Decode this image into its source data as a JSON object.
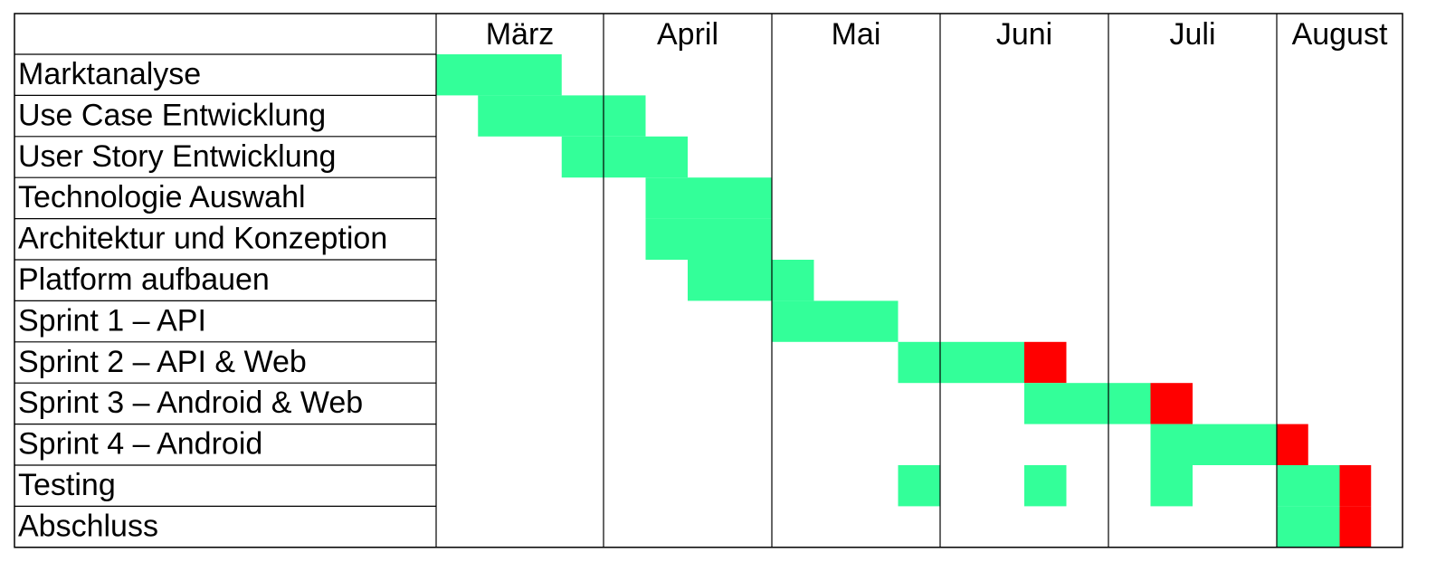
{
  "chart_data": {
    "type": "gantt",
    "months": [
      "März",
      "April",
      "Mai",
      "Juni",
      "Juli",
      "August"
    ],
    "slots_per_month": [
      4,
      4,
      4,
      4,
      4,
      3
    ],
    "colors": {
      "done": "#33ff99",
      "buffer": "#ff0000",
      "grid": "#000000"
    },
    "tasks": [
      {
        "name": "Marktanalyse",
        "segments": [
          {
            "start_month": 0,
            "start_slot": 0,
            "slots": 3,
            "status": "done"
          }
        ]
      },
      {
        "name": "Use Case Entwicklung",
        "segments": [
          {
            "start_month": 0,
            "start_slot": 1,
            "slots": 4,
            "status": "done"
          }
        ]
      },
      {
        "name": "User Story Entwicklung",
        "segments": [
          {
            "start_month": 0,
            "start_slot": 3,
            "slots": 3,
            "status": "done"
          }
        ]
      },
      {
        "name": "Technologie Auswahl",
        "segments": [
          {
            "start_month": 1,
            "start_slot": 1,
            "slots": 3,
            "status": "done"
          }
        ]
      },
      {
        "name": "Architektur und Konzeption",
        "segments": [
          {
            "start_month": 1,
            "start_slot": 1,
            "slots": 3,
            "status": "done"
          }
        ]
      },
      {
        "name": "Platform aufbauen",
        "segments": [
          {
            "start_month": 1,
            "start_slot": 2,
            "slots": 3,
            "status": "done"
          }
        ]
      },
      {
        "name": "Sprint 1 – API",
        "segments": [
          {
            "start_month": 2,
            "start_slot": 0,
            "slots": 3,
            "status": "done"
          }
        ]
      },
      {
        "name": "Sprint 2 – API & Web",
        "segments": [
          {
            "start_month": 2,
            "start_slot": 3,
            "slots": 3,
            "status": "done"
          },
          {
            "start_month": 3,
            "start_slot": 2,
            "slots": 1,
            "status": "buffer"
          }
        ]
      },
      {
        "name": "Sprint 3 – Android & Web",
        "segments": [
          {
            "start_month": 3,
            "start_slot": 2,
            "slots": 3,
            "status": "done"
          },
          {
            "start_month": 4,
            "start_slot": 1,
            "slots": 1,
            "status": "buffer"
          }
        ]
      },
      {
        "name": "Sprint 4 – Android",
        "segments": [
          {
            "start_month": 4,
            "start_slot": 1,
            "slots": 3,
            "status": "done"
          },
          {
            "start_month": 5,
            "start_slot": 0,
            "slots": 1,
            "status": "buffer"
          }
        ]
      },
      {
        "name": "Testing",
        "segments": [
          {
            "start_month": 2,
            "start_slot": 3,
            "slots": 1,
            "status": "done"
          },
          {
            "start_month": 3,
            "start_slot": 2,
            "slots": 1,
            "status": "done"
          },
          {
            "start_month": 4,
            "start_slot": 1,
            "slots": 1,
            "status": "done"
          },
          {
            "start_month": 5,
            "start_slot": 0,
            "slots": 2,
            "status": "done"
          },
          {
            "start_month": 5,
            "start_slot": 2,
            "slots": 1,
            "status": "buffer"
          }
        ]
      },
      {
        "name": "Abschluss",
        "segments": [
          {
            "start_month": 5,
            "start_slot": 0,
            "slots": 2,
            "status": "done"
          },
          {
            "start_month": 5,
            "start_slot": 2,
            "slots": 1,
            "status": "buffer"
          }
        ]
      }
    ]
  }
}
